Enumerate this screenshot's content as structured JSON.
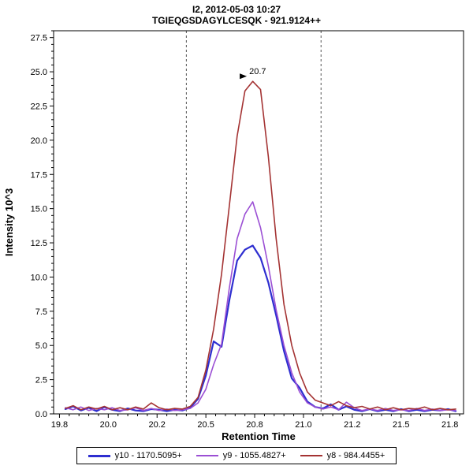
{
  "chart_data": {
    "type": "line",
    "title": "I2, 2012-05-03 10:27",
    "subtitle": "TGIEQGSDAGYLCESQK - 921.9124++",
    "xlabel": "Retention Time",
    "ylabel": "Intensity 10^3",
    "xlim": [
      19.72,
      21.82
    ],
    "ylim": [
      0,
      28.0
    ],
    "grid": false,
    "legend_position": "bottom",
    "x_ticks": {
      "values": [
        19.75,
        20.0,
        20.25,
        20.5,
        20.75,
        21.0,
        21.25,
        21.5,
        21.75
      ],
      "labels": [
        "19.8",
        "20.0",
        "20.2",
        "20.5",
        "20.8",
        "21.0",
        "21.2",
        "21.5",
        "21.8"
      ]
    },
    "y_ticks": {
      "values": [
        0,
        2.5,
        5,
        7.5,
        10,
        12.5,
        15,
        17.5,
        20,
        22.5,
        25,
        27.5
      ],
      "labels": [
        "0.0",
        "2.5",
        "5.0",
        "7.5",
        "10.0",
        "12.5",
        "15.0",
        "17.5",
        "20.0",
        "22.5",
        "25.0",
        "27.5"
      ]
    },
    "peak_boundaries": [
      20.4,
      21.09
    ],
    "annotation": {
      "text": "20.7",
      "x": 20.73,
      "y": 24.3,
      "color": "#cc2222"
    },
    "x_start": 19.78,
    "x_step": 0.04,
    "series": [
      {
        "name": "y10 - 1170.5095+",
        "color": "#2e2ed0",
        "width": 2.2,
        "values": [
          0.35,
          0.55,
          0.25,
          0.45,
          0.2,
          0.5,
          0.3,
          0.2,
          0.4,
          0.25,
          0.2,
          0.35,
          0.3,
          0.2,
          0.3,
          0.25,
          0.45,
          1.1,
          2.8,
          5.3,
          4.9,
          8.3,
          11.2,
          12.0,
          12.3,
          11.4,
          9.6,
          7.2,
          4.6,
          2.6,
          1.9,
          0.9,
          0.5,
          0.4,
          0.7,
          0.3,
          0.55,
          0.3,
          0.2,
          0.35,
          0.2,
          0.3,
          0.2,
          0.35,
          0.2,
          0.3,
          0.2,
          0.3,
          0.25,
          0.35,
          0.2
        ]
      },
      {
        "name": "y9 - 1055.4827+",
        "color": "#9b4fd4",
        "width": 1.6,
        "values": [
          0.45,
          0.3,
          0.5,
          0.25,
          0.4,
          0.3,
          0.45,
          0.25,
          0.3,
          0.45,
          0.25,
          0.4,
          0.25,
          0.35,
          0.25,
          0.3,
          0.4,
          0.8,
          1.8,
          3.6,
          5.1,
          9.2,
          12.8,
          14.6,
          15.5,
          13.6,
          10.8,
          7.6,
          5.0,
          3.0,
          1.6,
          0.8,
          0.5,
          0.35,
          0.5,
          0.3,
          0.85,
          0.45,
          0.25,
          0.35,
          0.25,
          0.4,
          0.25,
          0.3,
          0.25,
          0.4,
          0.25,
          0.35,
          0.25,
          0.3,
          0.25
        ]
      },
      {
        "name": "y8 - 984.4455+",
        "color": "#a43333",
        "width": 1.6,
        "values": [
          0.4,
          0.6,
          0.3,
          0.5,
          0.35,
          0.55,
          0.3,
          0.45,
          0.3,
          0.5,
          0.35,
          0.8,
          0.45,
          0.3,
          0.4,
          0.35,
          0.55,
          1.2,
          3.2,
          6.2,
          10.2,
          15.2,
          20.3,
          23.6,
          24.3,
          23.7,
          18.8,
          12.8,
          8.0,
          5.0,
          3.0,
          1.6,
          1.0,
          0.8,
          0.6,
          0.9,
          0.6,
          0.45,
          0.55,
          0.35,
          0.5,
          0.3,
          0.45,
          0.3,
          0.4,
          0.35,
          0.5,
          0.3,
          0.4,
          0.3,
          0.35
        ]
      }
    ]
  },
  "colors": {
    "boundary": "#555555",
    "axis": "#000000",
    "background": "#ffffff"
  }
}
